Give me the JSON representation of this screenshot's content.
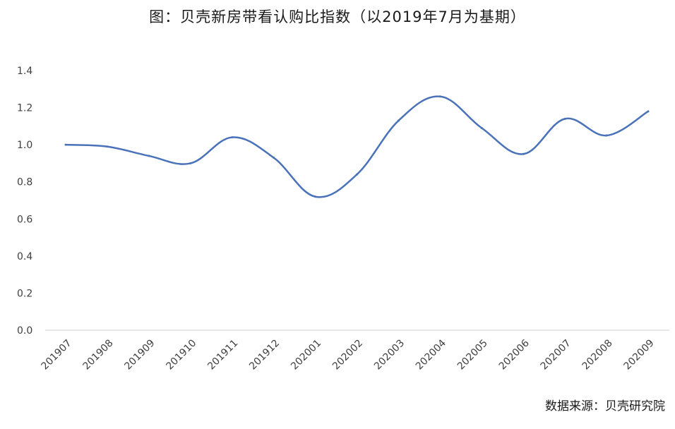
{
  "title": "图：贝壳新房带看认购比指数（以2019年7月为基期）",
  "source": "数据来源：贝壳研究院",
  "colors": {
    "line": "#4a72b8",
    "axis": "#d0d0d0",
    "text": "#3f3f3f"
  },
  "chart_data": {
    "type": "line",
    "title": "图：贝壳新房带看认购比指数（以2019年7月为基期）",
    "xlabel": "",
    "ylabel": "",
    "categories": [
      "201907",
      "201908",
      "201909",
      "201910",
      "201911",
      "201912",
      "202001",
      "202002",
      "202003",
      "202004",
      "202005",
      "202006",
      "202007",
      "202008",
      "202009"
    ],
    "series": [
      {
        "values": [
          1.0,
          0.99,
          0.94,
          0.9,
          1.04,
          0.93,
          0.72,
          0.84,
          1.13,
          1.26,
          1.09,
          0.95,
          1.14,
          1.05,
          1.18
        ]
      }
    ],
    "ylim": [
      0,
      1.4
    ],
    "yticks": [
      "0.0",
      "0.2",
      "0.4",
      "0.6",
      "0.8",
      "1.0",
      "1.2",
      "1.4"
    ],
    "grid": false,
    "legend": "none",
    "smooth": true
  }
}
